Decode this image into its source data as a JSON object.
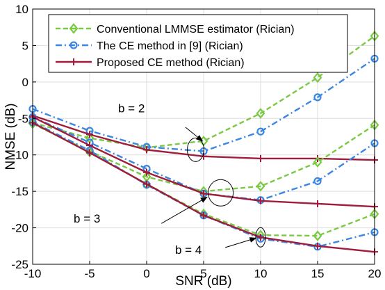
{
  "chart_data": {
    "type": "line",
    "title": "",
    "xlabel": "SNR (dB)",
    "ylabel": "NMSE (dB)",
    "xlim": [
      -10,
      20
    ],
    "ylim": [
      -25,
      10
    ],
    "x_ticks": [
      "-10",
      "-5",
      "0",
      "5",
      "10",
      "15",
      "20"
    ],
    "y_ticks": [
      "10",
      "5",
      "0",
      "-5",
      "-10",
      "-15",
      "-20",
      "-25"
    ],
    "grid": true,
    "legend_position": "top-right",
    "x": [
      -10,
      -5,
      0,
      5,
      10,
      15,
      20
    ],
    "series": [
      {
        "name": "Conventional LMMSE estimator (Rician)",
        "color": "#7ac943",
        "line_style": "dashed",
        "marker": "diamond",
        "group": "b = 2",
        "values": [
          -5.6,
          -7.7,
          -9.0,
          -8.1,
          -4.3,
          0.6,
          6.3
        ]
      },
      {
        "name": "The CE method in [9] (Rician)",
        "color": "#3a86e0",
        "line_style": "dash-dot",
        "marker": "circle",
        "group": "b = 2",
        "values": [
          -3.7,
          -6.7,
          -8.9,
          -9.5,
          -6.8,
          -2.1,
          3.2
        ]
      },
      {
        "name": "Proposed CE method (Rician)",
        "color": "#a01c3c",
        "line_style": "solid",
        "marker": "plus",
        "group": "b = 2",
        "values": [
          -4.6,
          -7.2,
          -9.3,
          -10.2,
          -10.5,
          -10.5,
          -10.7
        ]
      },
      {
        "name": "Conventional LMMSE estimator (Rician)",
        "color": "#7ac943",
        "line_style": "dashed",
        "marker": "diamond",
        "group": "b = 3",
        "values": [
          -5.7,
          -9.5,
          -13.0,
          -15.0,
          -14.3,
          -11.0,
          -5.9
        ]
      },
      {
        "name": "The CE method in [9] (Rician)",
        "color": "#3a86e0",
        "line_style": "dash-dot",
        "marker": "circle",
        "group": "b = 3",
        "values": [
          -4.8,
          -8.3,
          -11.9,
          -15.3,
          -16.2,
          -13.6,
          -8.4
        ]
      },
      {
        "name": "Proposed CE method (Rician)",
        "color": "#a01c3c",
        "line_style": "solid",
        "marker": "plus",
        "group": "b = 3",
        "values": [
          -4.8,
          -8.7,
          -12.4,
          -15.3,
          -16.3,
          -16.7,
          -17.1
        ]
      },
      {
        "name": "Conventional LMMSE estimator (Rician)",
        "color": "#7ac943",
        "line_style": "dashed",
        "marker": "diamond",
        "group": "b = 4",
        "values": [
          -5.7,
          -9.6,
          -14.0,
          -18.1,
          -21.0,
          -21.1,
          -18.1
        ]
      },
      {
        "name": "The CE method in [9] (Rician)",
        "color": "#3a86e0",
        "line_style": "dash-dot",
        "marker": "circle",
        "group": "b = 4",
        "values": [
          -5.5,
          -9.4,
          -14.1,
          -18.3,
          -21.5,
          -22.6,
          -20.6
        ]
      },
      {
        "name": "Proposed CE method (Rician)",
        "color": "#a01c3c",
        "line_style": "solid",
        "marker": "plus",
        "group": "b = 4",
        "values": [
          -5.6,
          -9.7,
          -14.0,
          -18.3,
          -21.3,
          -22.5,
          -23.3
        ]
      }
    ],
    "legend": [
      {
        "label": "Conventional LMMSE estimator (Rician)",
        "color": "#7ac943",
        "line_style": "dashed",
        "marker": "diamond"
      },
      {
        "label": "The CE method in [9] (Rician)",
        "color": "#3a86e0",
        "line_style": "dash-dot",
        "marker": "circle"
      },
      {
        "label": "Proposed CE method (Rician)",
        "color": "#a01c3c",
        "line_style": "solid",
        "marker": "plus"
      }
    ],
    "annotations": [
      {
        "text": "b = 2",
        "target_x": 5,
        "target_y": -9.3
      },
      {
        "text": "b = 3",
        "target_x": 6.5,
        "target_y": -15.2
      },
      {
        "text": "b = 4",
        "target_x": 10,
        "target_y": -21.3
      }
    ]
  }
}
